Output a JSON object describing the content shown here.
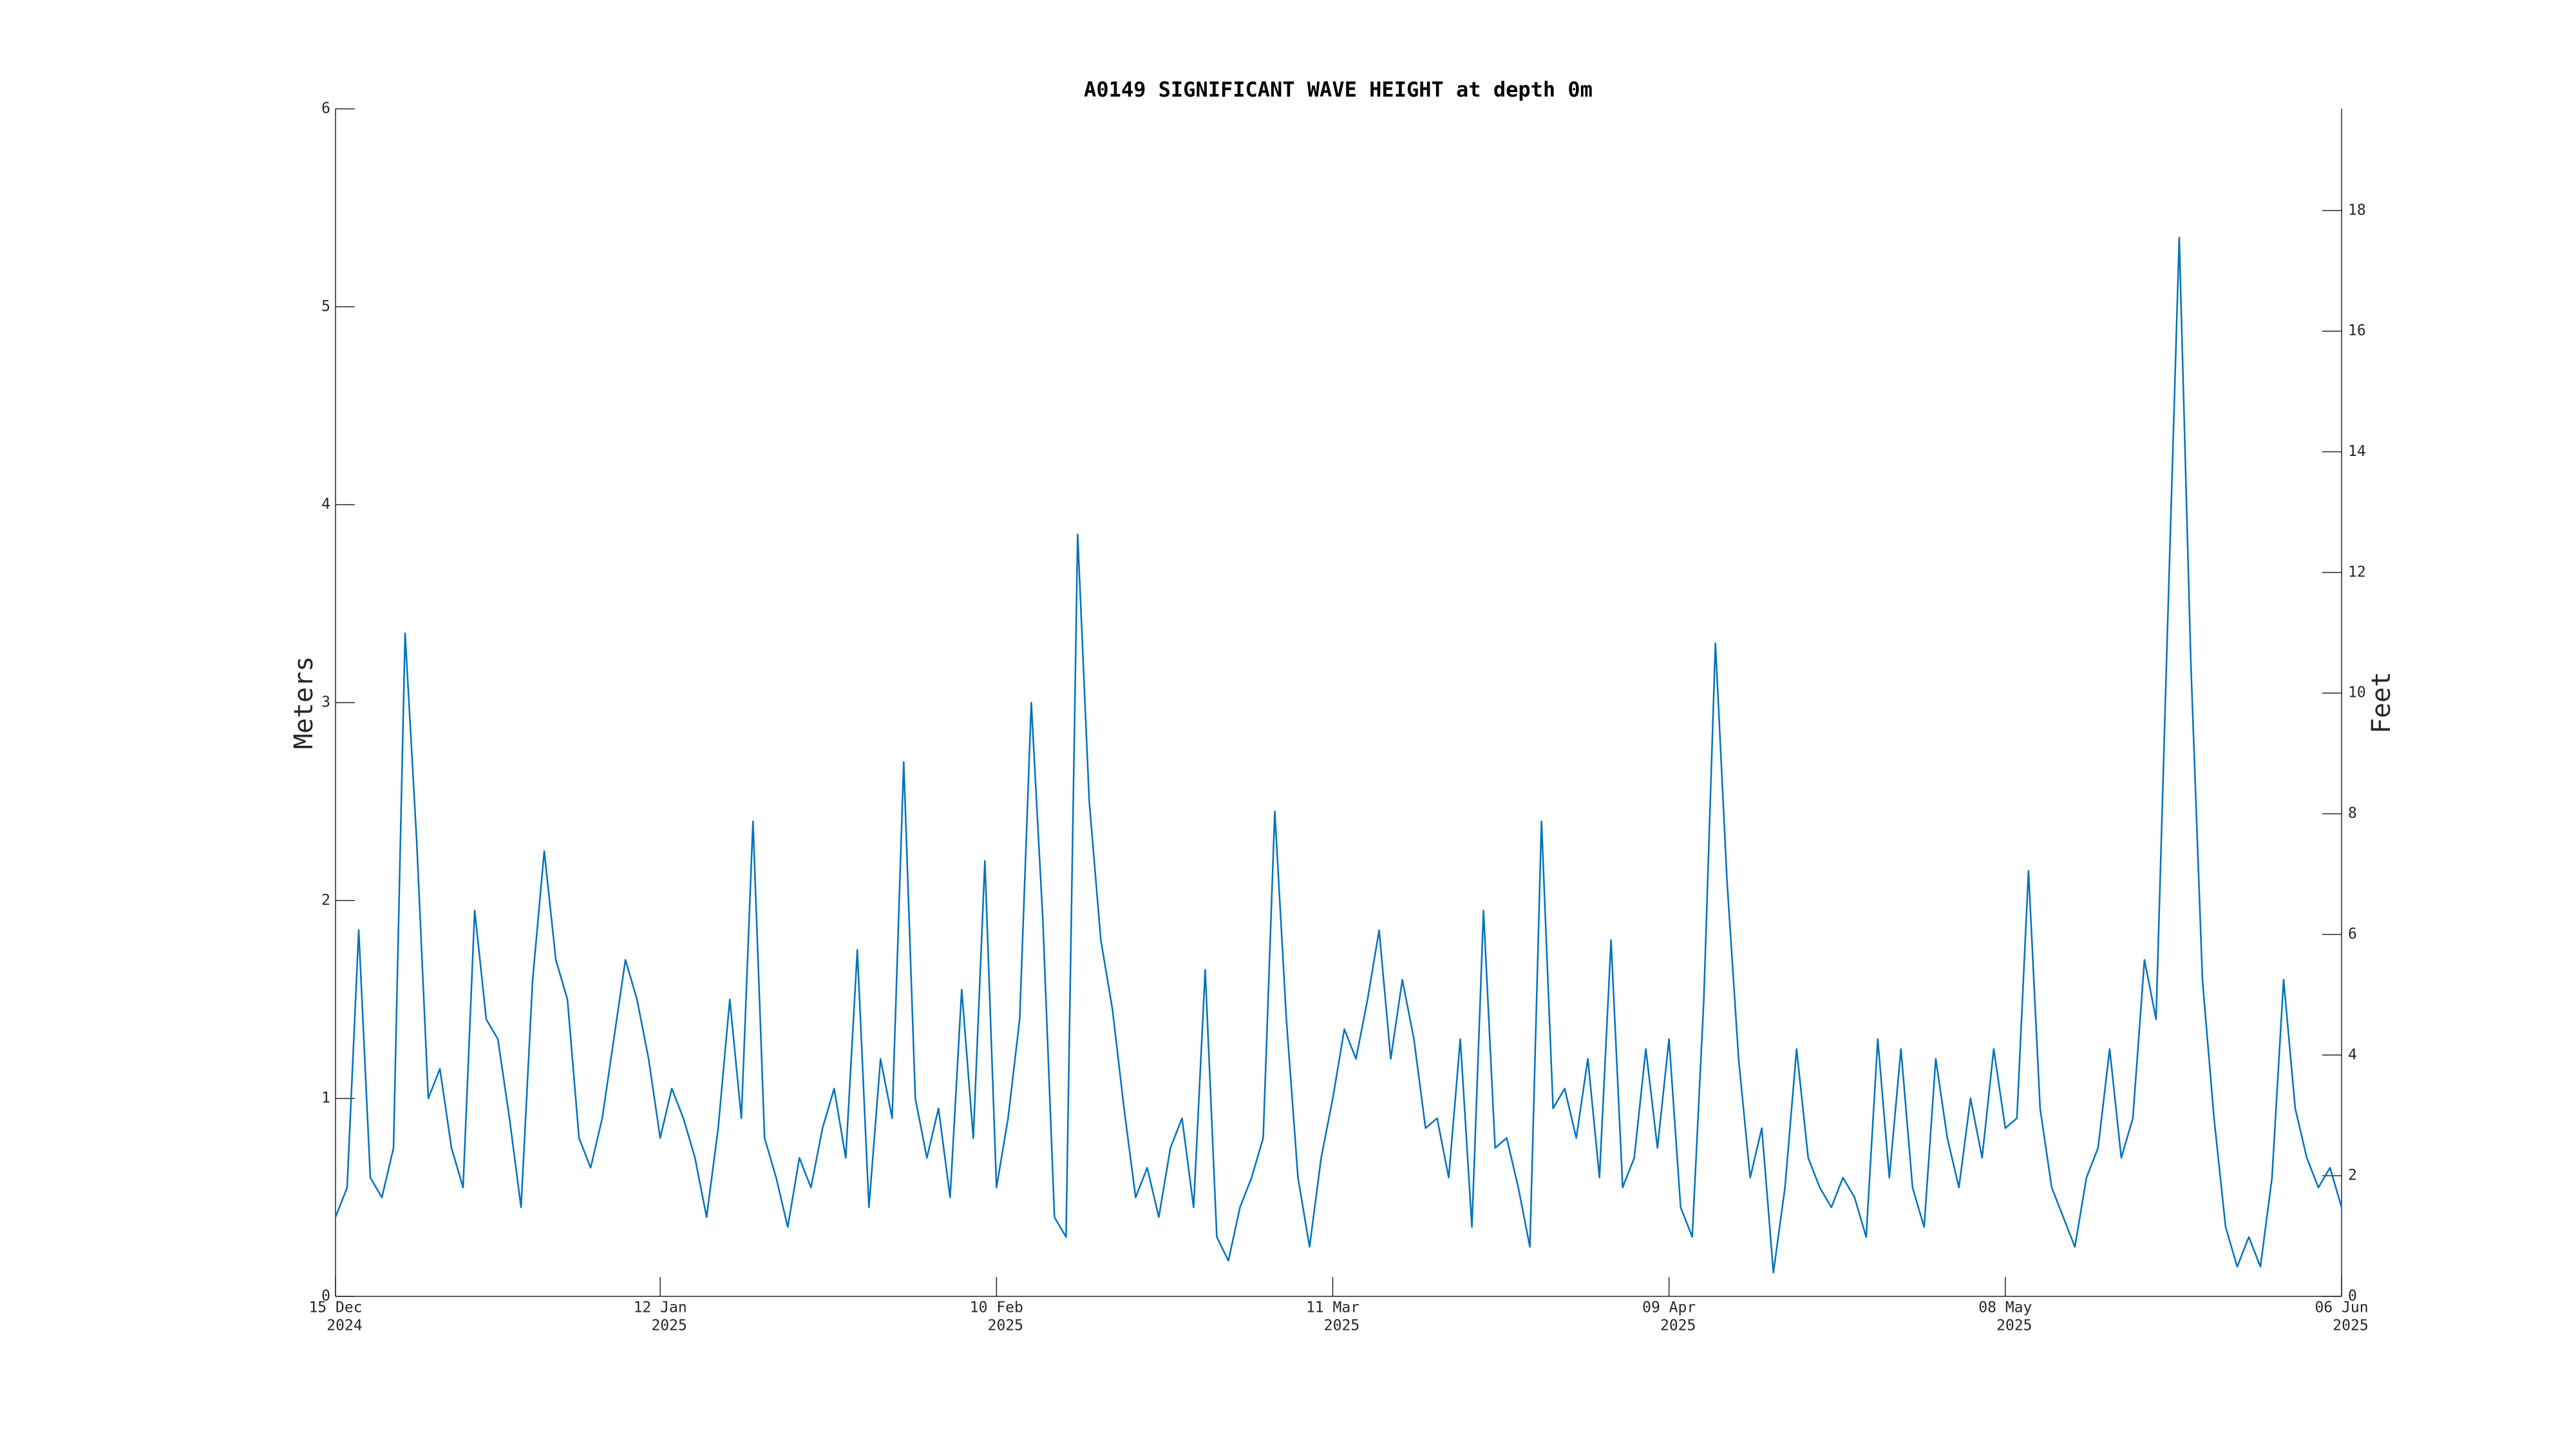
{
  "chart_data": {
    "type": "line",
    "title": "A0149 SIGNIFICANT WAVE HEIGHT at depth 0m",
    "ylabel": "Meters",
    "y2label": "Feet",
    "color": "#0072bd",
    "x": [
      "2024-12-15",
      "2024-12-16",
      "2024-12-17",
      "2024-12-18",
      "2024-12-19",
      "2024-12-20",
      "2024-12-21",
      "2024-12-22",
      "2024-12-23",
      "2024-12-24",
      "2024-12-25",
      "2024-12-26",
      "2024-12-27",
      "2024-12-28",
      "2024-12-29",
      "2024-12-30",
      "2024-12-31",
      "2025-01-01",
      "2025-01-02",
      "2025-01-03",
      "2025-01-04",
      "2025-01-05",
      "2025-01-06",
      "2025-01-07",
      "2025-01-08",
      "2025-01-09",
      "2025-01-10",
      "2025-01-11",
      "2025-01-12",
      "2025-01-13",
      "2025-01-14",
      "2025-01-15",
      "2025-01-16",
      "2025-01-17",
      "2025-01-18",
      "2025-01-19",
      "2025-01-20",
      "2025-01-21",
      "2025-01-22",
      "2025-01-23",
      "2025-01-24",
      "2025-01-25",
      "2025-01-26",
      "2025-01-27",
      "2025-01-28",
      "2025-01-29",
      "2025-01-30",
      "2025-01-31",
      "2025-02-01",
      "2025-02-02",
      "2025-02-03",
      "2025-02-04",
      "2025-02-05",
      "2025-02-06",
      "2025-02-07",
      "2025-02-08",
      "2025-02-09",
      "2025-02-10",
      "2025-02-11",
      "2025-02-12",
      "2025-02-13",
      "2025-02-14",
      "2025-02-15",
      "2025-02-16",
      "2025-02-17",
      "2025-02-18",
      "2025-02-19",
      "2025-02-20",
      "2025-02-21",
      "2025-02-22",
      "2025-02-23",
      "2025-02-24",
      "2025-02-25",
      "2025-02-26",
      "2025-02-27",
      "2025-02-28",
      "2025-03-01",
      "2025-03-02",
      "2025-03-03",
      "2025-03-04",
      "2025-03-05",
      "2025-03-06",
      "2025-03-07",
      "2025-03-08",
      "2025-03-09",
      "2025-03-10",
      "2025-03-11",
      "2025-03-12",
      "2025-03-13",
      "2025-03-14",
      "2025-03-15",
      "2025-03-16",
      "2025-03-17",
      "2025-03-18",
      "2025-03-19",
      "2025-03-20",
      "2025-03-21",
      "2025-03-22",
      "2025-03-23",
      "2025-03-24",
      "2025-03-25",
      "2025-03-26",
      "2025-03-27",
      "2025-03-28",
      "2025-03-29",
      "2025-03-30",
      "2025-03-31",
      "2025-04-01",
      "2025-04-02",
      "2025-04-03",
      "2025-04-04",
      "2025-04-05",
      "2025-04-06",
      "2025-04-07",
      "2025-04-08",
      "2025-04-09",
      "2025-04-10",
      "2025-04-11",
      "2025-04-12",
      "2025-04-13",
      "2025-04-14",
      "2025-04-15",
      "2025-04-16",
      "2025-04-17",
      "2025-04-18",
      "2025-04-19",
      "2025-04-20",
      "2025-04-21",
      "2025-04-22",
      "2025-04-23",
      "2025-04-24",
      "2025-04-25",
      "2025-04-26",
      "2025-04-27",
      "2025-04-28",
      "2025-04-29",
      "2025-04-30",
      "2025-05-01",
      "2025-05-02",
      "2025-05-03",
      "2025-05-04",
      "2025-05-05",
      "2025-05-06",
      "2025-05-07",
      "2025-05-08",
      "2025-05-09",
      "2025-05-10",
      "2025-05-11",
      "2025-05-12",
      "2025-05-13",
      "2025-05-14",
      "2025-05-15",
      "2025-05-16",
      "2025-05-17",
      "2025-05-18",
      "2025-05-19",
      "2025-05-20",
      "2025-05-21",
      "2025-05-22",
      "2025-05-23",
      "2025-05-24",
      "2025-05-25",
      "2025-05-26",
      "2025-05-27",
      "2025-05-28",
      "2025-05-29",
      "2025-05-30",
      "2025-05-31",
      "2025-06-01",
      "2025-06-02",
      "2025-06-03",
      "2025-06-04",
      "2025-06-05",
      "2025-06-06"
    ],
    "values": [
      0.4,
      0.55,
      1.85,
      0.6,
      0.5,
      0.75,
      3.35,
      2.3,
      1.0,
      1.15,
      0.75,
      0.55,
      1.95,
      1.4,
      1.3,
      0.9,
      0.45,
      1.6,
      2.25,
      1.7,
      1.5,
      0.8,
      0.65,
      0.9,
      1.3,
      1.7,
      1.5,
      1.2,
      0.8,
      1.05,
      0.9,
      0.7,
      0.4,
      0.85,
      1.5,
      0.9,
      2.4,
      0.8,
      0.6,
      0.35,
      0.7,
      0.55,
      0.85,
      1.05,
      0.7,
      1.75,
      0.45,
      1.2,
      0.9,
      2.7,
      1.0,
      0.7,
      0.95,
      0.5,
      1.55,
      0.8,
      2.2,
      0.55,
      0.9,
      1.4,
      3.0,
      1.9,
      0.4,
      0.3,
      3.85,
      2.5,
      1.8,
      1.45,
      0.95,
      0.5,
      0.65,
      0.4,
      0.75,
      0.9,
      0.45,
      1.65,
      0.3,
      0.18,
      0.45,
      0.6,
      0.8,
      2.45,
      1.4,
      0.6,
      0.25,
      0.7,
      1.0,
      1.35,
      1.2,
      1.5,
      1.85,
      1.2,
      1.6,
      1.3,
      0.85,
      0.9,
      0.6,
      1.3,
      0.35,
      1.95,
      0.75,
      0.8,
      0.55,
      0.25,
      2.4,
      0.95,
      1.05,
      0.8,
      1.2,
      0.6,
      1.8,
      0.55,
      0.7,
      1.25,
      0.75,
      1.3,
      0.45,
      0.3,
      1.5,
      3.3,
      2.1,
      1.2,
      0.6,
      0.85,
      0.12,
      0.55,
      1.25,
      0.7,
      0.55,
      0.45,
      0.6,
      0.5,
      0.3,
      1.3,
      0.6,
      1.25,
      0.55,
      0.35,
      1.2,
      0.8,
      0.55,
      1.0,
      0.7,
      1.25,
      0.85,
      0.9,
      2.15,
      0.95,
      0.55,
      0.4,
      0.25,
      0.6,
      0.75,
      1.25,
      0.7,
      0.9,
      1.7,
      1.4,
      3.4,
      5.35,
      3.2,
      1.6,
      0.9,
      0.35,
      0.15,
      0.3,
      0.15,
      0.6,
      1.6,
      0.95,
      0.7,
      0.55,
      0.65,
      0.45
    ],
    "xlim": [
      "2024-12-15",
      "2025-06-06"
    ],
    "xticks": [
      {
        "value": "2024-12-15",
        "label": [
          "15 Dec",
          "2024"
        ]
      },
      {
        "value": "2025-01-12",
        "label": [
          "12 Jan",
          "2025"
        ]
      },
      {
        "value": "2025-02-10",
        "label": [
          "10 Feb",
          "2025"
        ]
      },
      {
        "value": "2025-03-11",
        "label": [
          "11 Mar",
          "2025"
        ]
      },
      {
        "value": "2025-04-09",
        "label": [
          "09 Apr",
          "2025"
        ]
      },
      {
        "value": "2025-05-08",
        "label": [
          "08 May",
          "2025"
        ]
      },
      {
        "value": "2025-06-06",
        "label": [
          "06 Jun",
          "2025"
        ]
      }
    ],
    "ylim": [
      0,
      6
    ],
    "yticks": [
      0,
      1,
      2,
      3,
      4,
      5,
      6
    ],
    "y2lim": [
      0,
      19.685
    ],
    "y2ticks": [
      0,
      2,
      4,
      6,
      8,
      10,
      12,
      14,
      16,
      18
    ]
  }
}
